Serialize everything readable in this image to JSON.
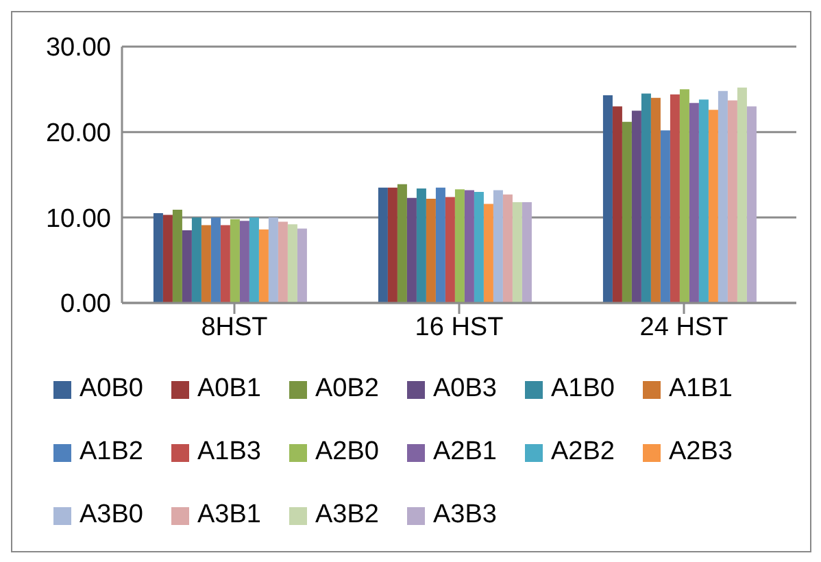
{
  "chart_data": {
    "type": "bar",
    "categories": [
      "8HST",
      "16 HST",
      "24 HST"
    ],
    "series": [
      {
        "name": "A0B0",
        "color": "#3c6496",
        "values": [
          10.5,
          13.5,
          24.3
        ]
      },
      {
        "name": "A0B1",
        "color": "#9b3b39",
        "values": [
          10.3,
          13.5,
          23.0
        ]
      },
      {
        "name": "A0B2",
        "color": "#7a9442",
        "values": [
          10.9,
          13.9,
          21.2
        ]
      },
      {
        "name": "A0B3",
        "color": "#654e84",
        "values": [
          8.5,
          12.3,
          22.5
        ]
      },
      {
        "name": "A1B0",
        "color": "#388aa0",
        "values": [
          10.0,
          13.4,
          24.5
        ]
      },
      {
        "name": "A1B1",
        "color": "#cd7832",
        "values": [
          9.1,
          12.2,
          24.0
        ]
      },
      {
        "name": "A1B2",
        "color": "#4f81bd",
        "values": [
          10.0,
          13.5,
          20.2
        ]
      },
      {
        "name": "A1B3",
        "color": "#c0504d",
        "values": [
          9.1,
          12.4,
          24.4
        ]
      },
      {
        "name": "A2B0",
        "color": "#9bbb59",
        "values": [
          9.8,
          13.3,
          25.0
        ]
      },
      {
        "name": "A2B1",
        "color": "#8064a2",
        "values": [
          9.6,
          13.2,
          23.4
        ]
      },
      {
        "name": "A2B2",
        "color": "#4bacc6",
        "values": [
          10.0,
          13.0,
          23.8
        ]
      },
      {
        "name": "A2B3",
        "color": "#f79646",
        "values": [
          8.6,
          11.6,
          22.6
        ]
      },
      {
        "name": "A3B0",
        "color": "#a9b9d9",
        "values": [
          10.0,
          13.2,
          24.8
        ]
      },
      {
        "name": "A3B1",
        "color": "#dca9a8",
        "values": [
          9.5,
          12.7,
          23.7
        ]
      },
      {
        "name": "A3B2",
        "color": "#c6d7ad",
        "values": [
          9.2,
          11.8,
          25.2
        ]
      },
      {
        "name": "A3B3",
        "color": "#b7abcb",
        "values": [
          8.7,
          11.8,
          23.0
        ]
      }
    ],
    "ylim": [
      0,
      30
    ],
    "yticks": [
      {
        "value": 0,
        "label": "0.00"
      },
      {
        "value": 10,
        "label": "10.00"
      },
      {
        "value": 20,
        "label": "20.00"
      },
      {
        "value": 30,
        "label": "30.00"
      }
    ],
    "grid": "y",
    "legend": "bottom"
  }
}
